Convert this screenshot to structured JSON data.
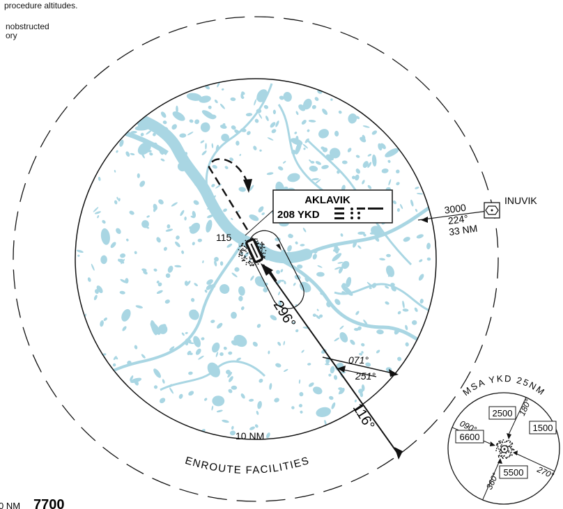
{
  "notes": {
    "line1": "procedure altitudes.",
    "line2": "nobstructed",
    "line3": "ory"
  },
  "navaid": {
    "name": "AKLAVIK",
    "frequency_ident": "208 YKD"
  },
  "labels": {
    "inbound_course": "296°",
    "outbound_course": "116°",
    "course_out": "071°",
    "course_in": "251°",
    "elevation": "115",
    "ring_10nm": "10 NM",
    "enroute_facilities": "ENROUTE FACILITIES",
    "inuvik": "INUVIK",
    "inuvik_altitude": "3000",
    "inuvik_bearing": "224°",
    "inuvik_distance": "33 NM",
    "bottom_left_nm": "0 NM",
    "bottom_left_elev": "7700"
  },
  "msa": {
    "title": "MSA YKD 25NM",
    "altitudes": [
      "2500",
      "1500",
      "6600",
      "5500"
    ],
    "bearings": [
      "180°",
      "090°",
      "270°",
      "360°"
    ]
  },
  "colors": {
    "water": "#a9d6e3",
    "ink": "#111111"
  }
}
